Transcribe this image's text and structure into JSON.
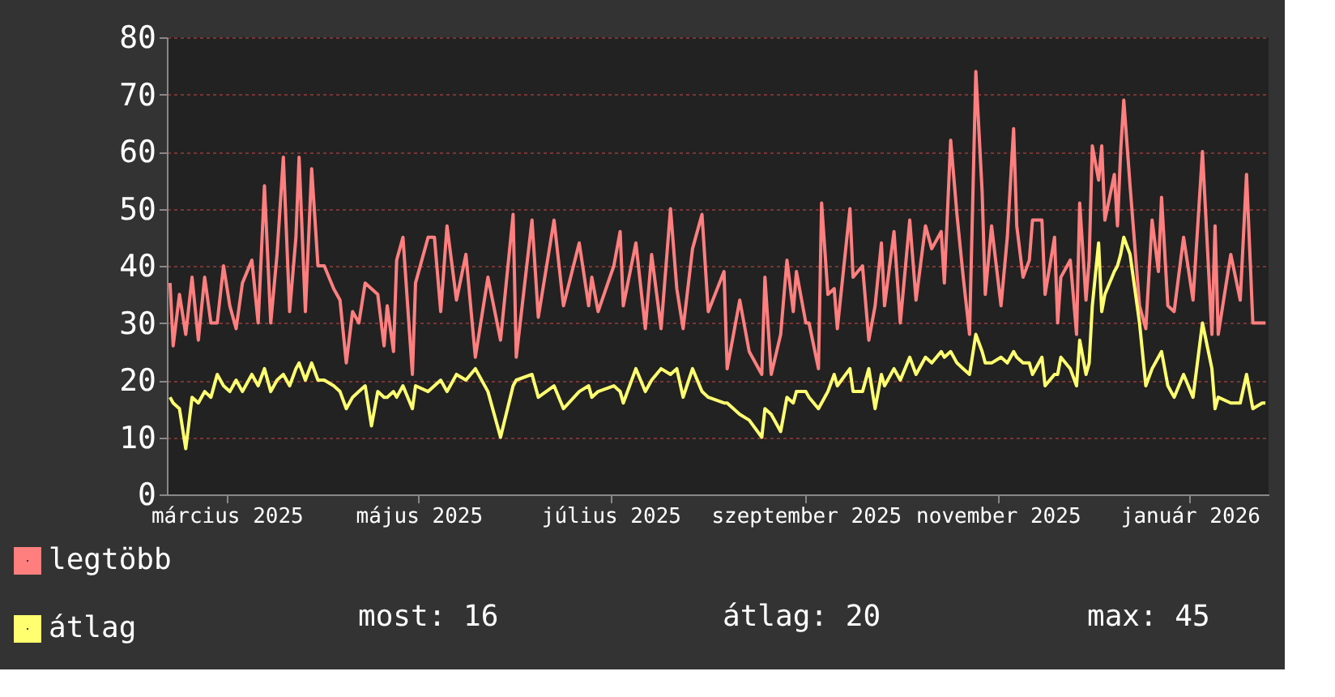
{
  "chart_data": {
    "type": "line",
    "x": [
      "2025-02-11",
      "2025-02-12",
      "2025-02-14",
      "2025-02-16",
      "2025-02-18",
      "2025-02-20",
      "2025-02-22",
      "2025-02-24",
      "2025-02-26",
      "2025-02-28",
      "2025-03-02",
      "2025-03-04",
      "2025-03-06",
      "2025-03-09",
      "2025-03-11",
      "2025-03-13",
      "2025-03-15",
      "2025-03-17",
      "2025-03-19",
      "2025-03-21",
      "2025-03-23",
      "2025-03-24",
      "2025-03-26",
      "2025-03-28",
      "2025-03-30",
      "2025-04-01",
      "2025-04-04",
      "2025-04-06",
      "2025-04-08",
      "2025-04-10",
      "2025-04-12",
      "2025-04-14",
      "2025-04-16",
      "2025-04-18",
      "2025-04-20",
      "2025-04-21",
      "2025-04-23",
      "2025-04-24",
      "2025-04-26",
      "2025-04-29",
      "2025-04-30",
      "2025-05-04",
      "2025-05-06",
      "2025-05-08",
      "2025-05-10",
      "2025-05-13",
      "2025-05-16",
      "2025-05-19",
      "2025-05-23",
      "2025-05-27",
      "2025-05-31",
      "2025-06-01",
      "2025-06-06",
      "2025-06-08",
      "2025-06-13",
      "2025-06-16",
      "2025-06-21",
      "2025-06-24",
      "2025-06-25",
      "2025-06-27",
      "2025-07-02",
      "2025-07-04",
      "2025-07-05",
      "2025-07-09",
      "2025-07-12",
      "2025-07-14",
      "2025-07-17",
      "2025-07-20",
      "2025-07-22",
      "2025-07-24",
      "2025-07-27",
      "2025-07-30",
      "2025-08-01",
      "2025-08-06",
      "2025-08-07",
      "2025-08-11",
      "2025-08-14",
      "2025-08-18",
      "2025-08-19",
      "2025-08-21",
      "2025-08-24",
      "2025-08-26",
      "2025-08-28",
      "2025-08-29",
      "2025-09-01",
      "2025-09-02",
      "2025-09-05",
      "2025-09-06",
      "2025-09-08",
      "2025-09-10",
      "2025-09-11",
      "2025-09-15",
      "2025-09-16",
      "2025-09-19",
      "2025-09-21",
      "2025-09-23",
      "2025-09-25",
      "2025-09-26",
      "2025-09-29",
      "2025-10-01",
      "2025-10-04",
      "2025-10-06",
      "2025-10-09",
      "2025-10-11",
      "2025-10-14",
      "2025-10-15",
      "2025-10-17",
      "2025-10-19",
      "2025-10-21",
      "2025-10-23",
      "2025-10-25",
      "2025-10-27",
      "2025-10-28",
      "2025-10-30",
      "2025-11-02",
      "2025-11-04",
      "2025-11-06",
      "2025-11-07",
      "2025-11-09",
      "2025-11-11",
      "2025-11-12",
      "2025-11-15",
      "2025-11-16",
      "2025-11-19",
      "2025-11-20",
      "2025-11-21",
      "2025-11-24",
      "2025-11-26",
      "2025-11-27",
      "2025-11-29",
      "2025-11-30",
      "2025-12-01",
      "2025-12-03",
      "2025-12-04",
      "2025-12-05",
      "2025-12-08",
      "2025-12-09",
      "2025-12-10",
      "2025-12-11",
      "2025-12-13",
      "2025-12-16",
      "2025-12-18",
      "2025-12-20",
      "2025-12-22",
      "2025-12-23",
      "2025-12-25",
      "2025-12-27",
      "2025-12-30",
      "2026-01-02",
      "2026-01-05",
      "2026-01-08",
      "2026-01-09",
      "2026-01-10",
      "2026-01-14",
      "2026-01-17",
      "2026-01-19",
      "2026-01-21",
      "2026-01-24",
      "2026-01-25"
    ],
    "series": [
      {
        "name": "legtöbb",
        "color": "#ff7f7f",
        "values": [
          37,
          26,
          35,
          28,
          38,
          27,
          38,
          30,
          30,
          40,
          33,
          29,
          37,
          41,
          30,
          54,
          30,
          42,
          59,
          32,
          45,
          59,
          32,
          57,
          40,
          40,
          36,
          34,
          23,
          32,
          30,
          37,
          36,
          35,
          26,
          33,
          25,
          41,
          45,
          21,
          37,
          45,
          45,
          32,
          47,
          34,
          42,
          24,
          38,
          27,
          49,
          24,
          48,
          31,
          48,
          33,
          44,
          33,
          38,
          32,
          40,
          46,
          33,
          44,
          29,
          42,
          29,
          50,
          36,
          29,
          43,
          49,
          32,
          39,
          22,
          34,
          25,
          21,
          38,
          21,
          28,
          41,
          32,
          39,
          30,
          30,
          22,
          51,
          35,
          36,
          29,
          50,
          38,
          40,
          27,
          33,
          44,
          33,
          46,
          30,
          48,
          34,
          47,
          43,
          46,
          37,
          62,
          49,
          38,
          28,
          74,
          53,
          35,
          47,
          33,
          45,
          64,
          47,
          38,
          41,
          48,
          48,
          35,
          45,
          30,
          38,
          41,
          28,
          51,
          34,
          41,
          61,
          55,
          61,
          48,
          56,
          47,
          60,
          69,
          54,
          33,
          29,
          48,
          39,
          52,
          33,
          32,
          45,
          34,
          60,
          28,
          47,
          28,
          42,
          34,
          56,
          30,
          30,
          30
        ]
      },
      {
        "name": "átlag",
        "color": "#ffff70",
        "values": [
          17,
          16,
          15,
          8,
          17,
          16,
          18,
          17,
          21,
          19,
          18,
          20,
          18,
          21,
          19,
          22,
          18,
          20,
          21,
          19,
          22,
          23,
          20,
          23,
          20,
          20,
          19,
          18,
          15,
          17,
          18,
          19,
          12,
          18,
          17,
          17,
          18,
          17,
          19,
          15,
          19,
          18,
          19,
          20,
          18,
          21,
          20,
          22,
          18,
          10,
          19,
          20,
          21,
          17,
          19,
          15,
          18,
          19,
          17,
          18,
          19,
          18,
          16,
          22,
          18,
          20,
          22,
          21,
          22,
          17,
          22,
          18,
          17,
          16,
          16,
          14,
          13,
          10,
          15,
          14,
          11,
          17,
          16,
          18,
          18,
          17,
          15,
          16,
          18,
          21,
          19,
          22,
          18,
          18,
          22,
          15,
          21,
          19,
          22,
          20,
          24,
          21,
          24,
          23,
          25,
          24,
          25,
          23,
          22,
          21,
          28,
          25,
          23,
          23,
          24,
          23,
          25,
          24,
          23,
          23,
          21,
          24,
          19,
          21,
          21,
          24,
          22,
          19,
          27,
          21,
          23,
          33,
          44,
          32,
          35,
          39,
          40,
          42,
          45,
          42,
          30,
          19,
          22,
          24,
          25,
          19,
          17,
          21,
          17,
          30,
          22,
          15,
          17,
          16,
          16,
          21,
          15,
          16,
          16
        ]
      }
    ],
    "xlim": [
      "2025-02-10",
      "2026-01-26"
    ],
    "xticks": [
      {
        "value": "2025-03-01",
        "label": "március 2025"
      },
      {
        "value": "2025-05-01",
        "label": "május 2025"
      },
      {
        "value": "2025-07-01",
        "label": "július 2025"
      },
      {
        "value": "2025-09-01",
        "label": "szeptember 2025"
      },
      {
        "value": "2025-11-01",
        "label": "november 2025"
      },
      {
        "value": "2026-01-01",
        "label": "január 2026"
      }
    ],
    "ylim": [
      0,
      80
    ],
    "yticks": [
      0,
      10,
      20,
      30,
      40,
      50,
      60,
      70,
      80
    ],
    "grid": "y",
    "legend": "bottom left",
    "line_style": "solid",
    "marker": "none",
    "annotations": [
      "most: 16",
      "átlag: 20",
      "max: 45"
    ]
  }
}
